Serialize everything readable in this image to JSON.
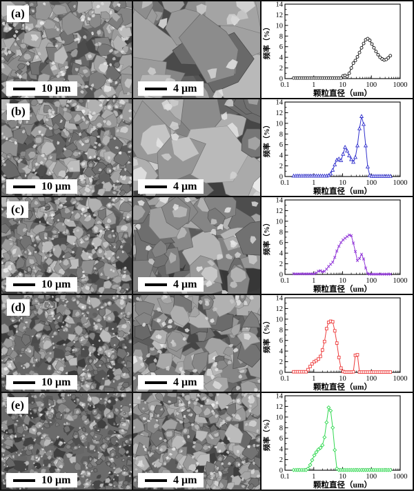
{
  "rows": [
    {
      "label": "(a)",
      "scale_left": "10 μm",
      "scale_mid": "4 μm"
    },
    {
      "label": "(b)",
      "scale_left": "10 μm",
      "scale_mid": "4 μm"
    },
    {
      "label": "(c)",
      "scale_left": "10 μm",
      "scale_mid": "4 μm"
    },
    {
      "label": "(d)",
      "scale_left": "10 μm",
      "scale_mid": "4 μm"
    },
    {
      "label": "(e)",
      "scale_left": "10 μm",
      "scale_mid": "4 μm"
    }
  ],
  "chart_data": {
    "type": "line",
    "xscale": "log",
    "xlabel": "颗粒直径（um）",
    "ylabel": "频率（%）",
    "xlim": [
      0.1,
      1000
    ],
    "ylim": [
      0,
      14
    ],
    "xticks": [
      0.1,
      1,
      10,
      100,
      1000
    ],
    "xtick_labels": [
      "0.1",
      "1",
      "10",
      "100",
      "1000"
    ],
    "yticks": [
      0,
      2,
      4,
      6,
      8,
      10,
      12,
      14
    ],
    "grid": false,
    "legend": "none",
    "x": [
      0.2,
      0.24,
      0.28,
      0.33,
      0.39,
      0.46,
      0.54,
      0.63,
      0.75,
      0.88,
      1.04,
      1.22,
      1.44,
      1.7,
      2.0,
      2.36,
      2.78,
      3.28,
      3.86,
      4.55,
      5.37,
      6.33,
      7.46,
      8.79,
      10.4,
      12.2,
      14.4,
      17.0,
      20.0,
      23.6,
      27.8,
      32.8,
      38.6,
      45.5,
      53.7,
      63.3,
      74.6,
      87.9,
      104,
      122,
      144,
      170,
      200,
      236,
      278,
      328,
      386,
      455
    ],
    "series": [
      {
        "name": "(a)",
        "marker": "circle",
        "color": "#111111",
        "values": [
          0.1,
          0.1,
          0.1,
          0.1,
          0.1,
          0.1,
          0.1,
          0.1,
          0.1,
          0.1,
          0.1,
          0.1,
          0.1,
          0.1,
          0.1,
          0.1,
          0.1,
          0.1,
          0.1,
          0.1,
          0.1,
          0.1,
          0.1,
          0.1,
          0.5,
          0.6,
          0.4,
          1.0,
          2.0,
          2.9,
          3.4,
          4.1,
          4.9,
          5.8,
          6.6,
          7.3,
          7.5,
          7.2,
          6.5,
          5.8,
          5.1,
          4.5,
          4.0,
          3.7,
          3.5,
          3.6,
          3.9,
          4.3
        ]
      },
      {
        "name": "(b)",
        "marker": "triangle",
        "color": "#3030cc",
        "values": [
          0.1,
          0.1,
          0.1,
          0.1,
          0.1,
          0.1,
          0.1,
          0.1,
          0.1,
          0.1,
          0.1,
          0.1,
          0.1,
          0.1,
          0.1,
          0.1,
          0.1,
          0.2,
          0.5,
          1.2,
          2.2,
          3.1,
          3.3,
          3.0,
          4.2,
          5.5,
          4.8,
          3.9,
          3.2,
          2.7,
          3.6,
          5.8,
          9.0,
          11.3,
          9.8,
          5.8,
          1.8,
          0.2,
          0.05,
          0.05,
          0.05,
          0.05,
          0.05,
          0.05,
          0.05,
          0.05,
          0.05,
          0.05
        ]
      },
      {
        "name": "(c)",
        "marker": "x",
        "color": "#9137d8",
        "values": [
          0.1,
          0.1,
          0.1,
          0.1,
          0.1,
          0.1,
          0.1,
          0.1,
          0.1,
          0.1,
          0.1,
          0.3,
          0.6,
          0.7,
          0.5,
          0.6,
          1.0,
          1.5,
          1.9,
          2.3,
          3.2,
          4.4,
          5.3,
          6.0,
          6.5,
          6.8,
          7.1,
          7.4,
          7.3,
          5.9,
          4.3,
          2.6,
          3.0,
          3.8,
          2.9,
          1.2,
          0.15,
          0.05,
          0.05,
          0.05,
          0.05,
          0.05,
          0.05,
          0.05,
          0.05,
          0.05,
          0.05,
          0.05
        ]
      },
      {
        "name": "(d)",
        "marker": "square",
        "color": "#ee3b3b",
        "values": [
          0.1,
          0.1,
          0.1,
          0.1,
          0.1,
          0.1,
          0.1,
          0.5,
          1.1,
          1.6,
          2.0,
          2.2,
          2.5,
          3.0,
          4.2,
          5.8,
          8.2,
          9.4,
          9.6,
          9.5,
          7.8,
          5.5,
          2.8,
          0.8,
          0.15,
          0.05,
          0.05,
          0.05,
          0.05,
          0.1,
          3.2,
          3.3,
          0.05,
          0.05,
          0.05,
          0.05,
          0.05,
          0.05,
          0.05,
          0.05,
          0.05,
          0.05,
          0.05,
          0.05,
          0.05,
          0.05,
          0.05,
          0.05
        ]
      },
      {
        "name": "(e)",
        "marker": "diamond",
        "color": "#2fd84f",
        "values": [
          0.05,
          0.05,
          0.05,
          0.05,
          0.05,
          0.05,
          0.05,
          0.3,
          1.0,
          1.9,
          2.8,
          3.4,
          3.9,
          4.2,
          4.7,
          6.2,
          9.0,
          11.8,
          11.2,
          8.0,
          3.8,
          0.3,
          0.05,
          0.05,
          0.05,
          0.05,
          0.05,
          0.05,
          0.05,
          0.05,
          0.05,
          0.05,
          0.05,
          0.05,
          0.05,
          0.05,
          0.05,
          0.05,
          0.05,
          0.05,
          0.05,
          0.05,
          0.05,
          0.05,
          0.05,
          0.05,
          0.05,
          0.05
        ]
      }
    ]
  }
}
